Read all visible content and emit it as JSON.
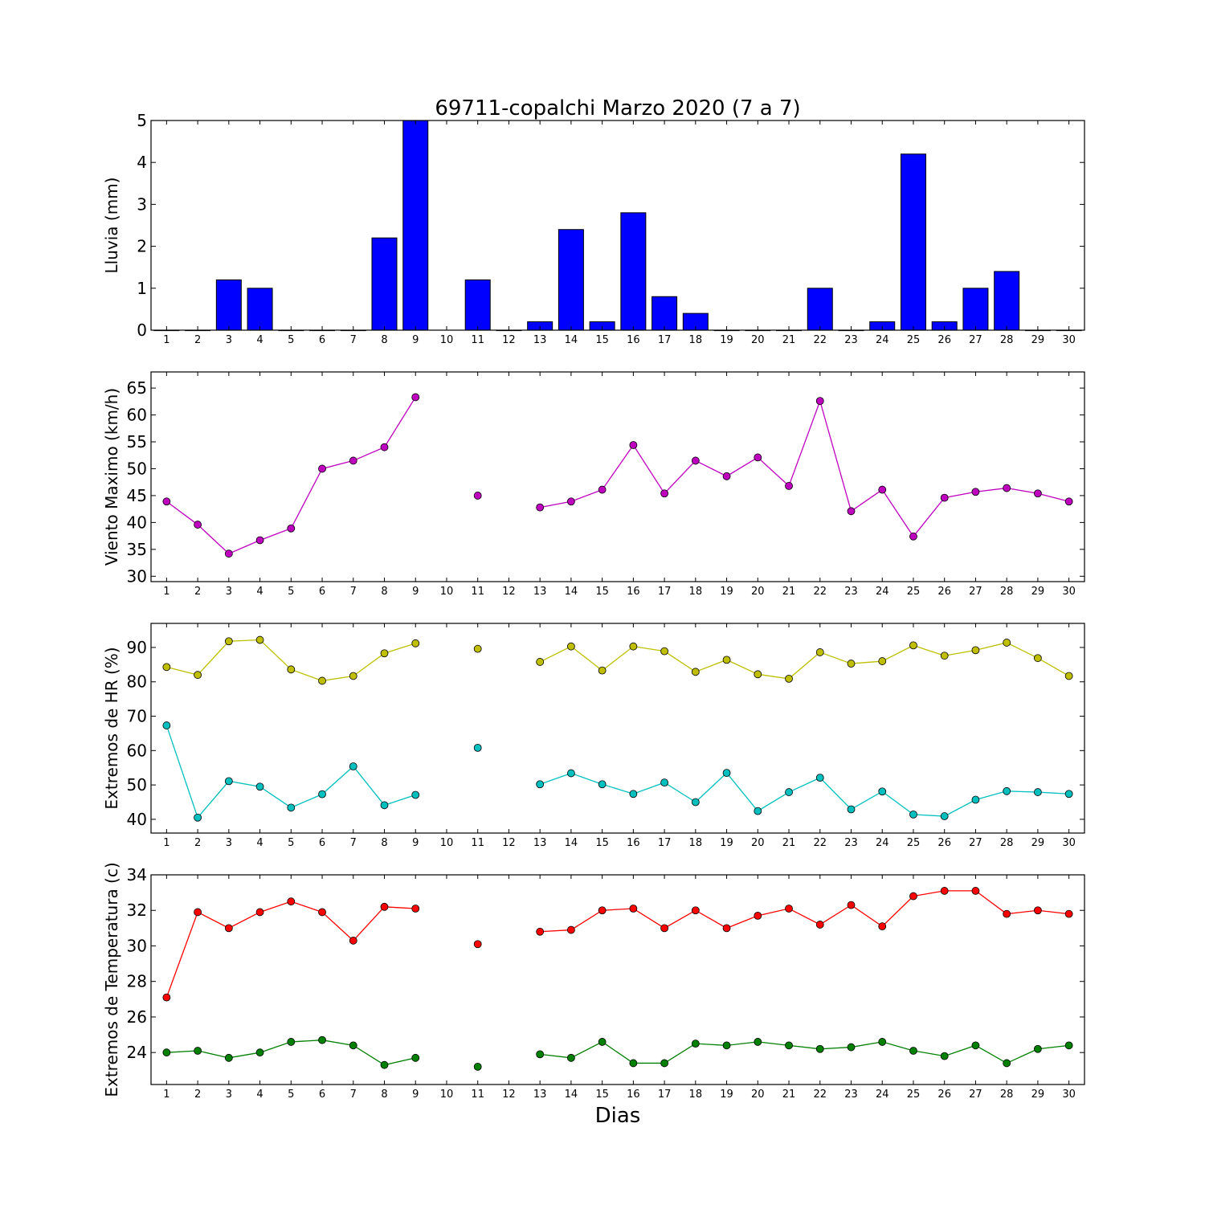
{
  "title": "69711-copalchi Marzo 2020  (7 a 7)",
  "xlabel": "Dias",
  "chart_data": [
    {
      "type": "bar",
      "ylabel": "Lluvia (mm)",
      "x": [
        1,
        2,
        3,
        4,
        5,
        6,
        7,
        8,
        9,
        10,
        11,
        12,
        13,
        14,
        15,
        16,
        17,
        18,
        19,
        20,
        21,
        22,
        23,
        24,
        25,
        26,
        27,
        28,
        29,
        30
      ],
      "xlim": [
        0.5,
        30.5
      ],
      "ylim": [
        0,
        5
      ],
      "yticks": [
        0,
        1,
        2,
        3,
        4,
        5
      ],
      "series": [
        {
          "color": "#0000ff",
          "values": [
            0,
            0,
            1.2,
            1.0,
            0,
            0,
            0,
            2.2,
            5.0,
            null,
            1.2,
            0,
            0.2,
            2.4,
            0.2,
            2.8,
            0.8,
            0.4,
            0,
            0,
            0,
            1.0,
            0,
            0.2,
            4.2,
            0.2,
            1.0,
            1.4,
            0,
            0
          ]
        }
      ]
    },
    {
      "type": "line",
      "ylabel": "Viento Maximo (km/h)",
      "x": [
        1,
        2,
        3,
        4,
        5,
        6,
        7,
        8,
        9,
        10,
        11,
        12,
        13,
        14,
        15,
        16,
        17,
        18,
        19,
        20,
        21,
        22,
        23,
        24,
        25,
        26,
        27,
        28,
        29,
        30
      ],
      "xlim": [
        0.5,
        30.5
      ],
      "ylim": [
        29,
        68
      ],
      "yticks": [
        30,
        35,
        40,
        45,
        50,
        55,
        60,
        65
      ],
      "series": [
        {
          "color": "#bf00bf",
          "values": [
            43.9,
            39.6,
            34.2,
            36.7,
            38.9,
            50.0,
            51.5,
            54.0,
            63.3,
            null,
            45.0,
            null,
            42.8,
            43.9,
            46.1,
            54.4,
            45.4,
            51.5,
            48.6,
            52.1,
            46.8,
            62.6,
            42.1,
            46.1,
            37.4,
            44.6,
            45.7,
            46.4,
            45.4,
            43.9
          ]
        }
      ]
    },
    {
      "type": "line",
      "ylabel": "Extremos de HR (%)",
      "x": [
        1,
        2,
        3,
        4,
        5,
        6,
        7,
        8,
        9,
        10,
        11,
        12,
        13,
        14,
        15,
        16,
        17,
        18,
        19,
        20,
        21,
        22,
        23,
        24,
        25,
        26,
        27,
        28,
        29,
        30
      ],
      "xlim": [
        0.5,
        30.5
      ],
      "ylim": [
        36,
        97
      ],
      "yticks": [
        40,
        50,
        60,
        70,
        80,
        90
      ],
      "series": [
        {
          "color": "#bfbf00",
          "values": [
            84.3,
            82.0,
            91.8,
            92.2,
            83.6,
            80.3,
            81.7,
            88.3,
            91.2,
            null,
            89.6,
            null,
            85.8,
            90.3,
            83.3,
            90.3,
            88.9,
            82.9,
            86.4,
            82.2,
            80.9,
            88.6,
            85.3,
            86.0,
            90.6,
            87.6,
            89.2,
            91.4,
            86.9,
            81.7
          ]
        },
        {
          "color": "#00bfbf",
          "values": [
            67.3,
            40.5,
            51.1,
            49.5,
            43.4,
            47.3,
            55.4,
            44.1,
            47.1,
            null,
            60.8,
            null,
            50.2,
            53.4,
            50.2,
            47.4,
            50.7,
            45.0,
            53.5,
            42.4,
            47.9,
            52.1,
            42.9,
            48.1,
            41.4,
            40.9,
            45.7,
            48.2,
            47.9,
            47.4
          ]
        }
      ]
    },
    {
      "type": "line",
      "ylabel": "Extremos de Temperatura (c)",
      "x": [
        1,
        2,
        3,
        4,
        5,
        6,
        7,
        8,
        9,
        10,
        11,
        12,
        13,
        14,
        15,
        16,
        17,
        18,
        19,
        20,
        21,
        22,
        23,
        24,
        25,
        26,
        27,
        28,
        29,
        30
      ],
      "xlim": [
        0.5,
        30.5
      ],
      "ylim": [
        22.2,
        34
      ],
      "yticks": [
        24,
        26,
        28,
        30,
        32,
        34
      ],
      "series": [
        {
          "color": "#ff0000",
          "values": [
            27.1,
            31.9,
            31.0,
            31.9,
            32.5,
            31.9,
            30.3,
            32.2,
            32.1,
            null,
            30.1,
            null,
            30.8,
            30.9,
            32.0,
            32.1,
            31.0,
            32.0,
            31.0,
            31.7,
            32.1,
            31.2,
            32.3,
            31.1,
            32.8,
            33.1,
            33.1,
            31.8,
            32.0,
            31.8
          ]
        },
        {
          "color": "#008000",
          "values": [
            24.0,
            24.1,
            23.7,
            24.0,
            24.6,
            24.7,
            24.4,
            23.3,
            23.7,
            null,
            23.2,
            null,
            23.9,
            23.7,
            24.6,
            23.4,
            23.4,
            24.5,
            24.4,
            24.6,
            24.4,
            24.2,
            24.3,
            24.6,
            24.1,
            23.8,
            24.4,
            23.4,
            24.2,
            24.4
          ]
        }
      ]
    }
  ]
}
